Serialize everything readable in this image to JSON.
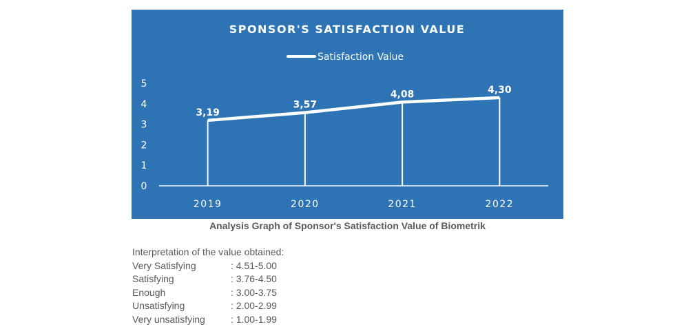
{
  "chart_data": {
    "type": "line",
    "title": "SPONSOR'S SATISFACTION VALUE",
    "legend": "Satisfaction Value",
    "legend_position": "top-center",
    "categories": [
      "2019",
      "2020",
      "2021",
      "2022"
    ],
    "values": [
      3.19,
      3.57,
      4.08,
      4.3
    ],
    "value_labels": [
      "3,19",
      "3,57",
      "4,08",
      "4,30"
    ],
    "yticks": [
      "0",
      "1",
      "2",
      "3",
      "4",
      "5"
    ],
    "ylim": [
      0,
      5
    ],
    "xlabel": "",
    "ylabel": "",
    "grid": false
  },
  "caption": "Analysis Graph of Sponsor's Satisfaction Value of Biometrik",
  "interpretation": {
    "heading": "Interpretation of the value obtained:",
    "rows": [
      {
        "category": "Very Satisfying",
        "range": ": 4.51-5.00"
      },
      {
        "category": "Satisfying",
        "range": ": 3.76-4.50"
      },
      {
        "category": "Enough",
        "range": ": 3.00-3.75"
      },
      {
        "category": "Unsatisfying",
        "range": ": 2.00-2.99"
      },
      {
        "category": "Very unsatisfying",
        "range": ": 1.00-1.99"
      }
    ]
  },
  "colors": {
    "panel": "#2e74b5",
    "line": "#ffffff",
    "text_gray": "#595959"
  }
}
